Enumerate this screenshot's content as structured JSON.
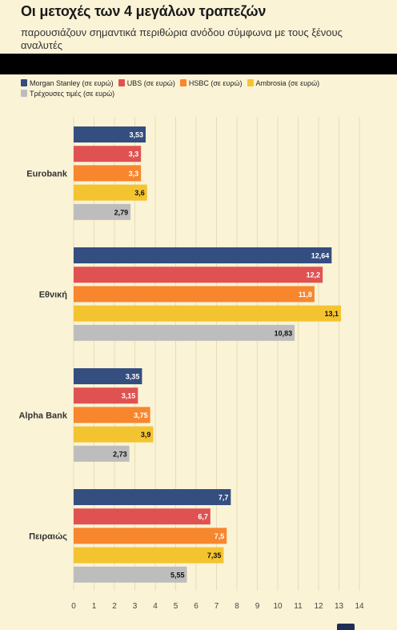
{
  "header": {
    "title": "Οι μετοχές των 4 μεγάλων τραπεζών",
    "subtitle": "παρουσιάζουν σημαντικά περιθώρια ανόδου σύμφωνα με τους ξένους αναλυτές"
  },
  "chart_data": {
    "type": "bar",
    "orientation": "horizontal",
    "categories": [
      "Eurobank",
      "Εθνική",
      "Alpha Bank",
      "Πειραιώς"
    ],
    "series": [
      {
        "name": "Morgan Stanley (σε ευρώ)",
        "color": "#344e80",
        "values": [
          3.53,
          12.64,
          3.35,
          7.7
        ],
        "labels": [
          "3,53",
          "12,64",
          "3,35",
          "7,7"
        ]
      },
      {
        "name": "UBS (σε ευρώ)",
        "color": "#e05252",
        "values": [
          3.3,
          12.2,
          3.15,
          6.7
        ],
        "labels": [
          "3,3",
          "12,2",
          "3,15",
          "6,7"
        ]
      },
      {
        "name": "HSBC (σε ευρώ)",
        "color": "#f7862d",
        "values": [
          3.3,
          11.8,
          3.75,
          7.5
        ],
        "labels": [
          "3,3",
          "11,8",
          "3,75",
          "7,5"
        ]
      },
      {
        "name": "Ambrosia (σε ευρώ)",
        "color": "#f4c430",
        "values": [
          3.6,
          13.1,
          3.9,
          7.35
        ],
        "labels": [
          "3,6",
          "13,1",
          "3,9",
          "7,35"
        ]
      },
      {
        "name": "Τρέχουσες τιμές (σε ευρώ)",
        "color": "#bdbdbd",
        "values": [
          2.79,
          10.83,
          2.73,
          5.55
        ],
        "labels": [
          "2,79",
          "10,83",
          "2,73",
          "5,55"
        ]
      }
    ],
    "xlim": [
      0,
      14
    ],
    "xticks": [
      "0",
      "1",
      "2",
      "3",
      "4",
      "5",
      "6",
      "7",
      "8",
      "9",
      "10",
      "11",
      "12",
      "13",
      "14"
    ],
    "grid": true,
    "legend_position": "top-left"
  }
}
